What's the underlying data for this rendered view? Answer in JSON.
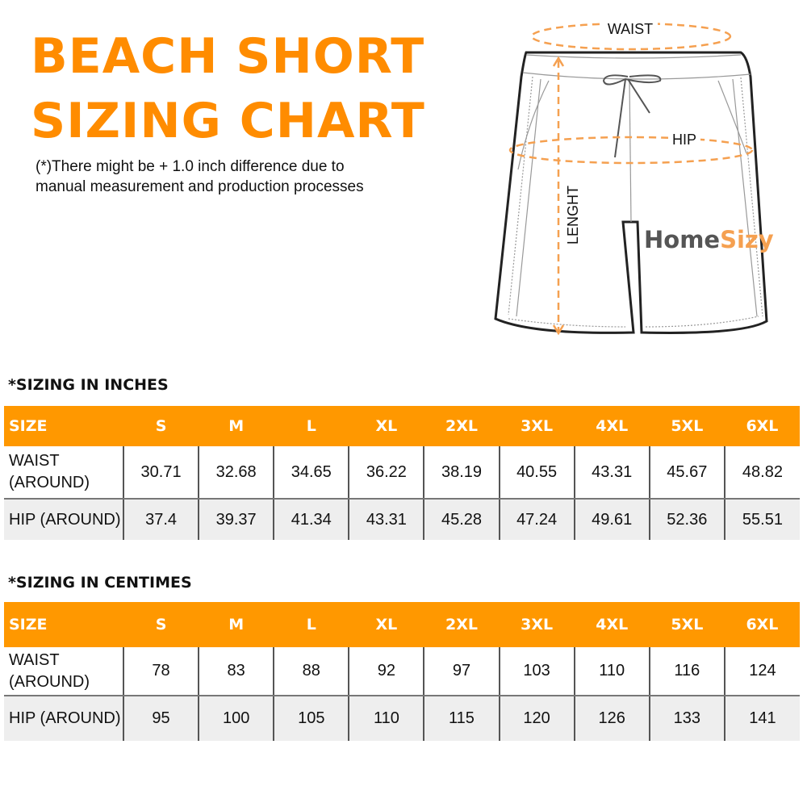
{
  "title_line1": "BEACH SHORT",
  "title_line2": "SIZING CHART",
  "note_line1": "(*)There might be + 1.0 inch difference due to",
  "note_line2": "manual measurement and production processes",
  "diagram": {
    "waist_label": "WAIST",
    "hip_label": "HIP",
    "length_label": "LENGHT",
    "logo_part1": "Home",
    "logo_part2": "Sizy"
  },
  "accent_color": "#ff9800",
  "tables": [
    {
      "title": "*SIZING IN INCHES",
      "header": [
        "SIZE",
        "S",
        "M",
        "L",
        "XL",
        "2XL",
        "3XL",
        "4XL",
        "5XL",
        "6XL"
      ],
      "rows": [
        {
          "label_line1": "WAIST",
          "label_line2": "(AROUND)",
          "values": [
            "30.71",
            "32.68",
            "34.65",
            "36.22",
            "38.19",
            "40.55",
            "43.31",
            "45.67",
            "48.82"
          ]
        },
        {
          "label_line1": "HIP (AROUND)",
          "values": [
            "37.4",
            "39.37",
            "41.34",
            "43.31",
            "45.28",
            "47.24",
            "49.61",
            "52.36",
            "55.51"
          ]
        }
      ]
    },
    {
      "title": "*SIZING IN CENTIMES",
      "header": [
        "SIZE",
        "S",
        "M",
        "L",
        "XL",
        "2XL",
        "3XL",
        "4XL",
        "5XL",
        "6XL"
      ],
      "rows": [
        {
          "label_line1": "WAIST",
          "label_line2": "(AROUND)",
          "values": [
            "78",
            "83",
            "88",
            "92",
            "97",
            "103",
            "110",
            "116",
            "124"
          ]
        },
        {
          "label_line1": "HIP (AROUND)",
          "values": [
            "95",
            "100",
            "105",
            "110",
            "115",
            "120",
            "126",
            "133",
            "141"
          ]
        }
      ]
    }
  ]
}
